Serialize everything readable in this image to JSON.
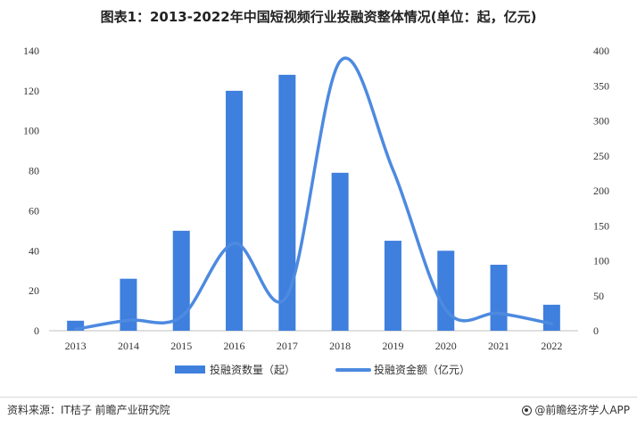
{
  "title": "图表1：2013-2022年中国短视频行业投融资整体情况(单位：起，亿元)",
  "source": "资料来源：IT桔子 前瞻产业研究院",
  "brand": "@前瞻经济学人APP",
  "colors": {
    "bar": "#3f7fdd",
    "line": "#4d8ae0"
  },
  "chart_data": {
    "type": "bar+line",
    "categories": [
      "2013",
      "2014",
      "2015",
      "2016",
      "2017",
      "2018",
      "2019",
      "2020",
      "2021",
      "2022"
    ],
    "series": [
      {
        "name": "投融资数量（起）",
        "type": "bar",
        "axis": "left",
        "values": [
          5,
          26,
          50,
          120,
          128,
          79,
          45,
          40,
          33,
          13
        ]
      },
      {
        "name": "投融资金额（亿元）",
        "type": "line",
        "axis": "right",
        "values": [
          2,
          15,
          20,
          125,
          50,
          385,
          230,
          30,
          25,
          10
        ]
      }
    ],
    "y_left": {
      "min": 0,
      "max": 140,
      "ticks": [
        0,
        20,
        40,
        60,
        80,
        100,
        120,
        140
      ]
    },
    "y_right": {
      "min": 0,
      "max": 400,
      "ticks": [
        0,
        50,
        100,
        150,
        200,
        250,
        300,
        350,
        400
      ]
    },
    "legend_position": "bottom",
    "grid": false
  }
}
